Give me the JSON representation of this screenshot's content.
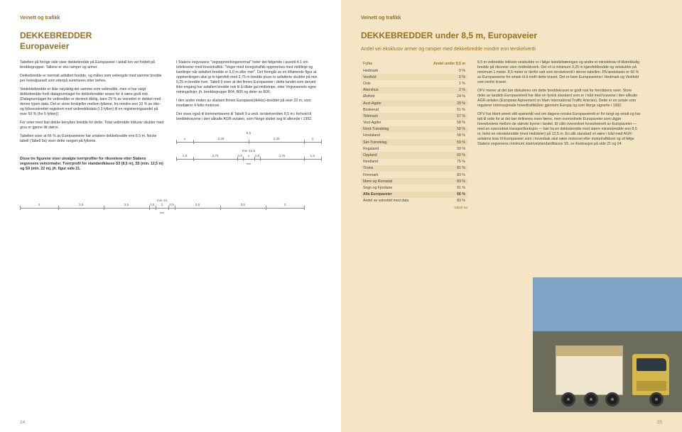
{
  "kicker": "Veinett og trafikk",
  "left": {
    "h1a": "DEKKEBREDDER",
    "h1b": "Europaveier",
    "col1": {
      "p1": "Tabellen på forrige side viser dekkebredde på Europaveier i antall km vei fordelt på breddegrupper. Tallene er eks ramper og armer.",
      "p2": "Dekkebredde er normalt asfaltert bredde, og måles som veilengde med samme bredde per hovedparsell som etterpå summeres etter behov.",
      "p3": "Veidekkebredde er ikke nøyaktig det samme som veibredde, men vi har valgt dekkebredde fordi datagrunnlaget for dekkebredder anses for å være godt nok. (Datagrunnlaget for veibredder er derimot dårlig, bare 29 % av veinettet er dekket med denne typen data. Det er store forskjeller mellom fylkene, fra mindre enn 10 % av riks- og fylkesveinettet registrert med veibreddedata (i 3 fylker) til en registreringsandel på over 50 % (for 5 fylker)).",
      "p4": "For veier med fast dekke benyttes bredde for dette. Total veibredde inklusiv skulder med grus er gjerne litt større.",
      "p5": "Tabellen viser at 66 % av Europaveiene har smalere dekkebredde enn 8,5 m. Neste tabell (Tabell 9a) viser dette rangert på fylkene.",
      "boxed": "Disse tre figurene viser utvalgte tverrprofiler for riksveiene etter Statens vegvesens veinormaler. Tverrprofil for standardklasse S3 (8,5 m), S5 (min. 12,5 m) og S9 (min. 22 m), jfr. figur side 21."
    },
    "col2": {
      "p1": "I Statens vegvesens \"vegoppmerkingsnormal\" heter det følgende i avsnitt 4.1 om tofeltsveier med toveistrafikk: \"Veger med tovegstrafikk oppmerkes med midtlinje og kantlinjer når asfaltert bredde er 6,0 m eller mer\". Det fremgår av en tilhørende figur at oppmerkingen skal gi to kjørefelt med 2,75 m bredde pluss to asfalterte skuldre på min. 0,25 m bredde hver. Tabell 9 viser at det finnes Europaveier i dette landet som derved ikke engang har asfaltert bredde nok til å tillate gul midtstripe, etter Vegvesenets egne retningslinjer, jfr. breddegruppe B04, B05 og deler av B06.",
      "p2": "I den andre enden av skalaen finnes Europavei(dekke)-bredder på over 22 m, som innebærer 4 felts motorvei.",
      "p3": "Det vises også til kommentarene til Tabell 9 a vedr. terskelverdien 8,5 m i forhold til breddekravene i den såkalte AGR-avtalen, som Norge sluttet seg til allerede i 1992."
    },
    "diagrams": {
      "d85": {
        "segments": [
          "1",
          "3,25",
          "3,25",
          "1"
        ],
        "percents": [
          0,
          11.8,
          50,
          88.2,
          100
        ],
        "caption": "8,5"
      },
      "d125": {
        "segments": [
          "1,5",
          "3,75",
          "0,5",
          "1",
          "0,5",
          "3,75",
          "1,5"
        ],
        "percents": [
          0,
          12,
          42,
          46,
          54,
          58,
          88,
          100
        ],
        "caption": "min 12,5",
        "subcaption": "min"
      },
      "d22": {
        "segments": [
          "3",
          "3,5",
          "3,5",
          "0,5",
          "1",
          "0,5",
          "3,5",
          "3,5",
          "3"
        ],
        "percents": [
          0,
          13.6,
          29.5,
          45.5,
          47.7,
          52.3,
          54.5,
          70.5,
          86.4,
          100
        ],
        "caption": "min 22",
        "subcaption": "min"
      }
    },
    "pagenum": "24"
  },
  "right": {
    "h1": "DEKKEBREDDER under 8,5 m, Europaveier",
    "intro": "Andel vei eksklusiv armer og ramper med dekkebredde mindre enn terskelverdi",
    "table": {
      "head1": "Fylke",
      "head2": "Andel under 8,5 m",
      "rows": [
        {
          "f": "Hedmark",
          "v": "0 %"
        },
        {
          "f": "Vestfold",
          "v": "0 %"
        },
        {
          "f": "Oslo",
          "v": "1 %"
        },
        {
          "f": "Akershus",
          "v": "2 %"
        },
        {
          "f": "Østfold",
          "v": "24 %"
        },
        {
          "f": "Aust-Agder",
          "v": "28 %"
        },
        {
          "f": "Buskerud",
          "v": "51 %"
        },
        {
          "f": "Telemark",
          "v": "57 %"
        },
        {
          "f": "Vest-Agder",
          "v": "58 %"
        },
        {
          "f": "Nord-Trøndelag",
          "v": "58 %"
        },
        {
          "f": "Hordaland",
          "v": "58 %"
        },
        {
          "f": "Sør-Trøndelag",
          "v": "59 %"
        },
        {
          "f": "Rogaland",
          "v": "59 %"
        },
        {
          "f": "Oppland",
          "v": "60 %"
        },
        {
          "f": "Nordland",
          "v": "75 %"
        },
        {
          "f": "Troms",
          "v": "81 %"
        },
        {
          "f": "Finnmark",
          "v": "83 %"
        },
        {
          "f": "Møre og Romsdal",
          "v": "83 %"
        },
        {
          "f": "Sogn og Fjordane",
          "v": "91 %"
        }
      ],
      "total1": {
        "f": "Alle Europaveier",
        "v": "66 %"
      },
      "total2": {
        "f": "Andel av veinettet med data",
        "v": "83 %"
      },
      "tag": "Tabell 9a"
    },
    "col2": {
      "p1": "8,5 m veibredde inklusiv veiskuldre er i følge lastebilnæringen og andre et minstekrav til tilstrekkelig bredde på riksveier uten midtrekkverk. Det vil si minimum 3,25 m kjørefeltbredde og veiskuldre på minimum 1 meter. 8,5 meter er derfor satt som terskelverdi i denne tabellen. På landsbasis er 66 % av Europaveiene for smale til å innfri dette kravet. Det er bare Europaveiene i Hedmark og Vestfold som innfrir kravet.",
      "p2": "OFV mener at det bør diskuteres om dette breddekravet er godt nok for fremtidens veier. Store deler av landets Europaveinett har ikke en fysisk standard som er i tråd med kravene i den såkalte AGR-avtalen (European Agreement on Main International Traffic Arteries). Dette er en avtale som regulerer internasjonale hovedtrafikkårer gjennom Europa og som Norge signerte i 1992.",
      "p3": "OFV har blant annet stilt spørsmål ved om dagens norske Europaveinett er for langt og smalt og har tatt til orde for at det bør defineres noen færre, men overordnete Europaveier som utgjør hovedveiene mellom de største byene i landet. Et slikt overordnet hovedveinett av Europaveier — med en overordnet transportfunksjon — bør ha en dekkebredde med større minstebredde enn 8,5 m; helst en minstebredde (med midtdeler) på 12,5 m. En slik standard vil være i tråd med AGR-avtalens krav til Europaveier som i hovedsak skal være motorvei eller motortrafikkvei og vil følge Statens vegvesens minimum stamveistandardklasse S5, se illustrasjon på side 21 og 24."
    },
    "pagenum": "25"
  }
}
